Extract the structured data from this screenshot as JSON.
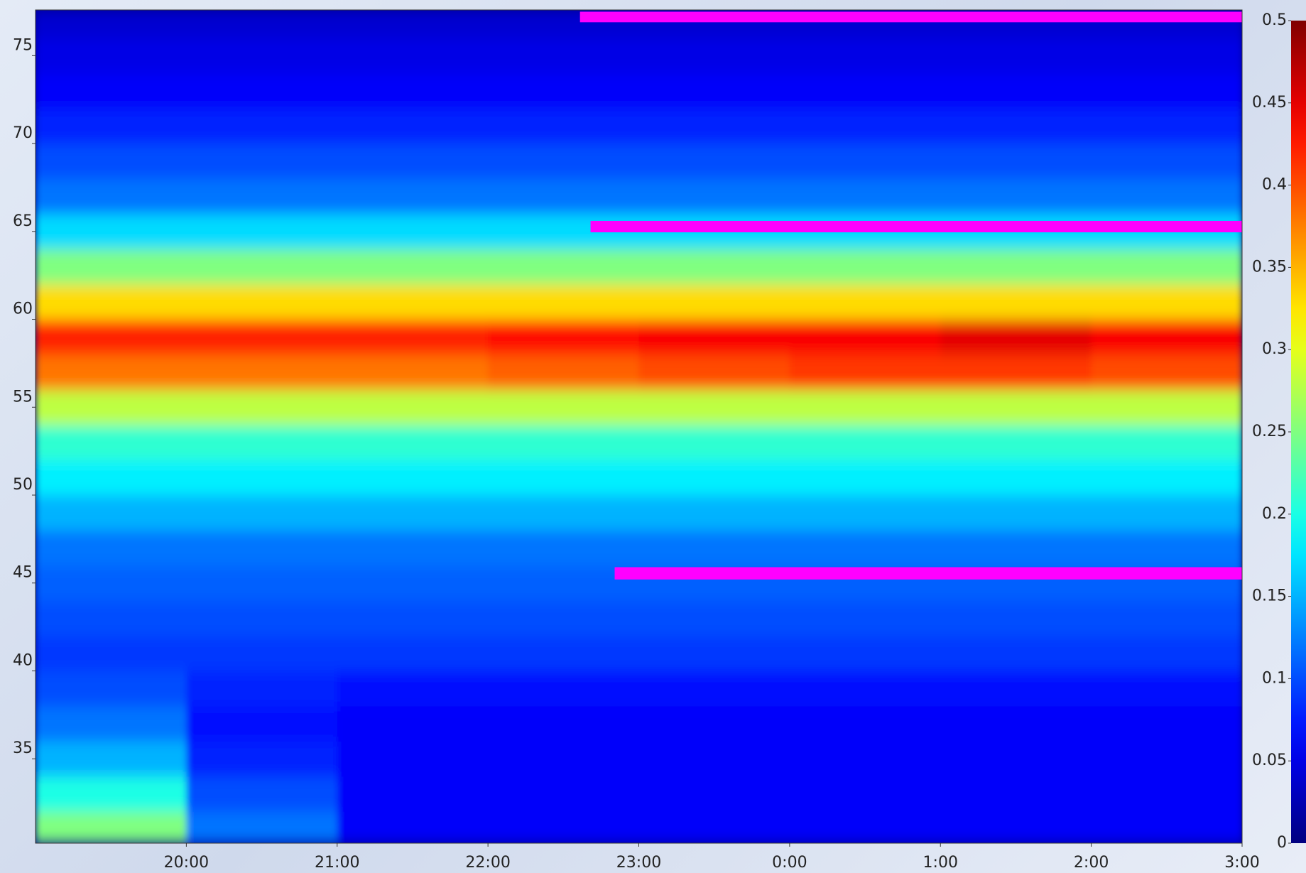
{
  "chart_data": {
    "type": "heatmap",
    "colormap": "jet",
    "x_bins": [
      19,
      20,
      21,
      22,
      23,
      24,
      25,
      26,
      27
    ],
    "y_bins": [
      30.2,
      32,
      34,
      36,
      38,
      40,
      42,
      44,
      46,
      48,
      50,
      52,
      54,
      56,
      58,
      60,
      62,
      64,
      66,
      68,
      70,
      72,
      74,
      76,
      77.6
    ],
    "values": [
      [
        0.25,
        0.12,
        0.06,
        0.06,
        0.06,
        0.06,
        0.06,
        0.06
      ],
      [
        0.2,
        0.1,
        0.06,
        0.06,
        0.06,
        0.06,
        0.06,
        0.06
      ],
      [
        0.15,
        0.08,
        0.06,
        0.06,
        0.06,
        0.06,
        0.06,
        0.06
      ],
      [
        0.12,
        0.07,
        0.06,
        0.06,
        0.06,
        0.06,
        0.06,
        0.06
      ],
      [
        0.1,
        0.08,
        0.07,
        0.07,
        0.07,
        0.07,
        0.07,
        0.07
      ],
      [
        0.09,
        0.09,
        0.09,
        0.09,
        0.09,
        0.09,
        0.09,
        0.09
      ],
      [
        0.1,
        0.1,
        0.1,
        0.1,
        0.1,
        0.1,
        0.1,
        0.1
      ],
      [
        0.11,
        0.11,
        0.11,
        0.11,
        0.11,
        0.11,
        0.11,
        0.11
      ],
      [
        0.12,
        0.12,
        0.12,
        0.12,
        0.12,
        0.12,
        0.12,
        0.12
      ],
      [
        0.15,
        0.15,
        0.15,
        0.15,
        0.15,
        0.15,
        0.15,
        0.15
      ],
      [
        0.18,
        0.18,
        0.18,
        0.18,
        0.18,
        0.18,
        0.18,
        0.18
      ],
      [
        0.21,
        0.21,
        0.21,
        0.21,
        0.21,
        0.21,
        0.21,
        0.21
      ],
      [
        0.28,
        0.28,
        0.28,
        0.28,
        0.28,
        0.28,
        0.28,
        0.28
      ],
      [
        0.38,
        0.38,
        0.38,
        0.39,
        0.4,
        0.41,
        0.41,
        0.4
      ],
      [
        0.42,
        0.42,
        0.42,
        0.43,
        0.44,
        0.44,
        0.45,
        0.44
      ],
      [
        0.33,
        0.33,
        0.33,
        0.33,
        0.33,
        0.33,
        0.33,
        0.33
      ],
      [
        0.25,
        0.25,
        0.25,
        0.25,
        0.25,
        0.25,
        0.25,
        0.25
      ],
      [
        0.17,
        0.17,
        0.17,
        0.17,
        0.17,
        0.17,
        0.17,
        0.17
      ],
      [
        0.12,
        0.12,
        0.12,
        0.12,
        0.12,
        0.12,
        0.12,
        0.12
      ],
      [
        0.1,
        0.1,
        0.1,
        0.1,
        0.1,
        0.1,
        0.1,
        0.1
      ],
      [
        0.08,
        0.08,
        0.08,
        0.08,
        0.08,
        0.08,
        0.08,
        0.08
      ],
      [
        0.06,
        0.06,
        0.06,
        0.06,
        0.06,
        0.06,
        0.06,
        0.06
      ],
      [
        0.05,
        0.05,
        0.05,
        0.05,
        0.05,
        0.05,
        0.05,
        0.05
      ],
      [
        0.04,
        0.04,
        0.04,
        0.04,
        0.04,
        0.04,
        0.04,
        0.04
      ]
    ],
    "xlim": [
      19,
      27
    ],
    "ylim": [
      30.2,
      77.6
    ],
    "xticks": [
      {
        "value": 20,
        "label": "20:00"
      },
      {
        "value": 21,
        "label": "21:00"
      },
      {
        "value": 22,
        "label": "22:00"
      },
      {
        "value": 23,
        "label": "23:00"
      },
      {
        "value": 24,
        "label": "0:00"
      },
      {
        "value": 25,
        "label": "1:00"
      },
      {
        "value": 26,
        "label": "2:00"
      },
      {
        "value": 27,
        "label": "3:00"
      }
    ],
    "yticks": [
      35,
      40,
      45,
      50,
      55,
      60,
      65,
      70,
      75
    ],
    "clim": [
      0,
      0.5
    ],
    "cticks": [
      0,
      0.05,
      0.1,
      0.15,
      0.2,
      0.25,
      0.3,
      0.35,
      0.4,
      0.45,
      0.5
    ],
    "overlays": [
      {
        "color": "#ff00ff",
        "x": [
          22.61,
          27
        ],
        "y": [
          76.9,
          77.5
        ]
      },
      {
        "color": "#ff00ff",
        "x": [
          22.68,
          27
        ],
        "y": [
          64.95,
          65.6
        ]
      },
      {
        "color": "#ff00ff",
        "x": [
          22.84,
          27
        ],
        "y": [
          45.2,
          45.9
        ]
      }
    ]
  }
}
